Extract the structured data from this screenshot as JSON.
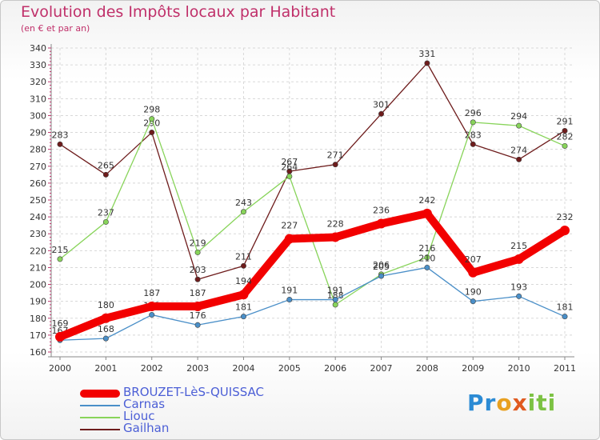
{
  "chart_data": {
    "type": "line",
    "title": "Evolution des Impôts locaux par Habitant",
    "subtitle": "(en € et par an)",
    "xlabel": "",
    "ylabel": "",
    "ylim": [
      160,
      340
    ],
    "ytick_step": 10,
    "grid": true,
    "legend_position": "bottom-left",
    "categories": [
      "2000",
      "2001",
      "2002",
      "2003",
      "2004",
      "2005",
      "2006",
      "2007",
      "2008",
      "2009",
      "2010",
      "2011"
    ],
    "series": [
      {
        "name": "Gailhan",
        "color": "#6e1c1c",
        "values": [
          283,
          265,
          290,
          203,
          211,
          267,
          271,
          301,
          331,
          283,
          274,
          291
        ]
      },
      {
        "name": "Liouc",
        "color": "#88d45a",
        "values": [
          215,
          237,
          298,
          219,
          243,
          264,
          188,
          206,
          216,
          296,
          294,
          282
        ]
      },
      {
        "name": "Carnas",
        "color": "#4a8fc8",
        "values": [
          167,
          168,
          182,
          176,
          181,
          191,
          191,
          205,
          210,
          190,
          193,
          181
        ]
      },
      {
        "name": "BROUZET-LèS-QUISSAC",
        "color": "#f20000",
        "values": [
          169,
          180,
          187,
          187,
          194,
          227,
          228,
          236,
          242,
          207,
          215,
          232
        ]
      }
    ]
  },
  "legend": {
    "items": [
      {
        "label": "BROUZET-LèS-QUISSAC",
        "color": "#f20000"
      },
      {
        "label": "Carnas",
        "color": "#4a8fc8"
      },
      {
        "label": "Liouc",
        "color": "#88d45a"
      },
      {
        "label": "Gailhan",
        "color": "#6e1c1c"
      }
    ]
  },
  "logo": {
    "p1": "Pr",
    "p2": "o",
    "p3": "x",
    "p4": "iti"
  }
}
